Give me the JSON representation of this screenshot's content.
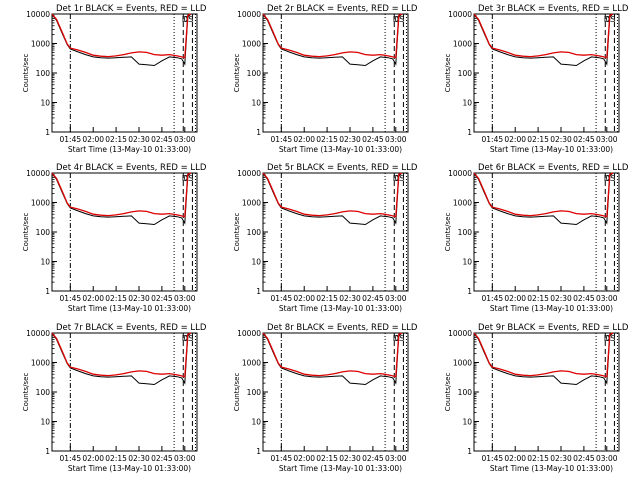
{
  "panel_common": {
    "xlabel": "Start Time (13-May-10 01:33:00)",
    "ylabel": "Counts/sec",
    "x_tick_labels": [
      "01:45",
      "02:00",
      "02:15",
      "02:30",
      "02:45",
      "03:00"
    ],
    "y_tick_labels": [
      "1",
      "10",
      "100",
      "1000",
      "10000"
    ],
    "legend_black": "BLACK = Events",
    "legend_red": "RED = LLD",
    "markers": [
      "D",
      "C",
      "S"
    ],
    "colors": {
      "events": "#000000",
      "lld": "#dd0000"
    }
  },
  "chart_data": [
    {
      "type": "line",
      "title": "Det 1r BLACK = Events, RED = LLD",
      "xlabel": "Start Time (13-May-10 01:33:00)",
      "ylabel": "Counts/sec",
      "yscale": "log",
      "ylim": [
        1,
        10000
      ],
      "xlim": [
        "01:33",
        "03:08"
      ],
      "x": [
        "01:33",
        "01:36",
        "01:40",
        "01:43",
        "01:45",
        "01:50",
        "01:55",
        "02:00",
        "02:05",
        "02:10",
        "02:15",
        "02:20",
        "02:25",
        "02:30",
        "02:35",
        "02:40",
        "02:45",
        "02:50",
        "02:55",
        "02:58",
        "03:00",
        "03:02",
        "03:04"
      ],
      "series": [
        {
          "name": "Events",
          "values": [
            10000,
            6000,
            2000,
            900,
            650,
            520,
            420,
            350,
            330,
            320,
            330,
            340,
            350,
            200,
            190,
            180,
            260,
            350,
            330,
            300,
            200,
            8000,
            10000
          ]
        },
        {
          "name": "LLD",
          "values": [
            10000,
            6500,
            2200,
            950,
            700,
            600,
            500,
            400,
            370,
            360,
            380,
            420,
            480,
            520,
            500,
            420,
            400,
            420,
            380,
            350,
            330,
            9000,
            10000
          ]
        }
      ]
    },
    {
      "type": "line",
      "title": "Det 2r BLACK = Events, RED = LLD",
      "xlabel": "Start Time (13-May-10 01:33:00)",
      "ylabel": "Counts/sec",
      "yscale": "log",
      "ylim": [
        1,
        10000
      ],
      "xlim": [
        "01:33",
        "03:08"
      ],
      "x": [
        "01:33",
        "01:36",
        "01:40",
        "01:43",
        "01:45",
        "01:50",
        "01:55",
        "02:00",
        "02:05",
        "02:10",
        "02:15",
        "02:20",
        "02:25",
        "02:30",
        "02:35",
        "02:40",
        "02:45",
        "02:50",
        "02:55",
        "02:58",
        "03:00",
        "03:02",
        "03:04"
      ],
      "series": [
        {
          "name": "Events",
          "values": [
            10000,
            6000,
            2000,
            900,
            650,
            520,
            420,
            350,
            330,
            320,
            330,
            340,
            350,
            200,
            190,
            180,
            260,
            350,
            330,
            300,
            200,
            8000,
            10000
          ]
        },
        {
          "name": "LLD",
          "values": [
            10000,
            6500,
            2200,
            950,
            700,
            600,
            500,
            400,
            370,
            360,
            380,
            420,
            480,
            520,
            500,
            420,
            400,
            420,
            380,
            350,
            330,
            9000,
            10000
          ]
        }
      ]
    },
    {
      "type": "line",
      "title": "Det 3r BLACK = Events, RED = LLD",
      "xlabel": "Start Time (13-May-10 01:33:00)",
      "ylabel": "Counts/sec",
      "yscale": "log",
      "ylim": [
        1,
        10000
      ],
      "xlim": [
        "01:33",
        "03:08"
      ],
      "x": [
        "01:33",
        "01:36",
        "01:40",
        "01:43",
        "01:45",
        "01:50",
        "01:55",
        "02:00",
        "02:05",
        "02:10",
        "02:15",
        "02:20",
        "02:25",
        "02:30",
        "02:35",
        "02:40",
        "02:45",
        "02:50",
        "02:55",
        "02:58",
        "03:00",
        "03:02",
        "03:04"
      ],
      "series": [
        {
          "name": "Events",
          "values": [
            10000,
            6000,
            2000,
            900,
            650,
            520,
            420,
            350,
            330,
            320,
            330,
            340,
            350,
            200,
            190,
            180,
            260,
            350,
            330,
            300,
            200,
            8000,
            10000
          ]
        },
        {
          "name": "LLD",
          "values": [
            10000,
            6500,
            2200,
            950,
            700,
            600,
            500,
            400,
            370,
            360,
            380,
            420,
            480,
            520,
            500,
            420,
            400,
            420,
            380,
            350,
            330,
            9000,
            10000
          ]
        }
      ]
    },
    {
      "type": "line",
      "title": "Det 4r BLACK = Events, RED = LLD",
      "xlabel": "Start Time (13-May-10 01:33:00)",
      "ylabel": "Counts/sec",
      "yscale": "log",
      "ylim": [
        1,
        10000
      ],
      "xlim": [
        "01:33",
        "03:08"
      ],
      "x": [
        "01:33",
        "01:36",
        "01:40",
        "01:43",
        "01:45",
        "01:50",
        "01:55",
        "02:00",
        "02:05",
        "02:10",
        "02:15",
        "02:20",
        "02:25",
        "02:30",
        "02:35",
        "02:40",
        "02:45",
        "02:50",
        "02:55",
        "02:58",
        "03:00",
        "03:02",
        "03:04"
      ],
      "series": [
        {
          "name": "Events",
          "values": [
            10000,
            6000,
            2000,
            900,
            650,
            520,
            420,
            350,
            330,
            320,
            330,
            340,
            350,
            200,
            190,
            180,
            260,
            350,
            330,
            300,
            200,
            8000,
            10000
          ]
        },
        {
          "name": "LLD",
          "values": [
            10000,
            6500,
            2200,
            950,
            700,
            600,
            500,
            400,
            370,
            360,
            380,
            420,
            480,
            520,
            500,
            420,
            400,
            420,
            380,
            350,
            330,
            9000,
            10000
          ]
        }
      ]
    },
    {
      "type": "line",
      "title": "Det 5r BLACK = Events, RED = LLD",
      "xlabel": "Start Time (13-May-10 01:33:00)",
      "ylabel": "Counts/sec",
      "yscale": "log",
      "ylim": [
        1,
        10000
      ],
      "xlim": [
        "01:33",
        "03:08"
      ],
      "x": [
        "01:33",
        "01:36",
        "01:40",
        "01:43",
        "01:45",
        "01:50",
        "01:55",
        "02:00",
        "02:05",
        "02:10",
        "02:15",
        "02:20",
        "02:25",
        "02:30",
        "02:35",
        "02:40",
        "02:45",
        "02:50",
        "02:55",
        "02:58",
        "03:00",
        "03:02",
        "03:04"
      ],
      "series": [
        {
          "name": "Events",
          "values": [
            10000,
            6000,
            2000,
            900,
            650,
            520,
            420,
            350,
            330,
            320,
            330,
            340,
            350,
            200,
            190,
            180,
            260,
            350,
            330,
            300,
            200,
            8000,
            10000
          ]
        },
        {
          "name": "LLD",
          "values": [
            10000,
            6500,
            2200,
            950,
            700,
            600,
            500,
            400,
            370,
            360,
            380,
            420,
            480,
            520,
            500,
            420,
            400,
            420,
            380,
            350,
            330,
            9000,
            10000
          ]
        }
      ]
    },
    {
      "type": "line",
      "title": "Det 6r BLACK = Events, RED = LLD",
      "xlabel": "Start Time (13-May-10 01:33:00)",
      "ylabel": "Counts/sec",
      "yscale": "log",
      "ylim": [
        1,
        10000
      ],
      "xlim": [
        "01:33",
        "03:08"
      ],
      "x": [
        "01:33",
        "01:36",
        "01:40",
        "01:43",
        "01:45",
        "01:50",
        "01:55",
        "02:00",
        "02:05",
        "02:10",
        "02:15",
        "02:20",
        "02:25",
        "02:30",
        "02:35",
        "02:40",
        "02:45",
        "02:50",
        "02:55",
        "02:58",
        "03:00",
        "03:02",
        "03:04"
      ],
      "series": [
        {
          "name": "Events",
          "values": [
            10000,
            6000,
            2000,
            900,
            650,
            520,
            420,
            350,
            330,
            320,
            330,
            340,
            350,
            200,
            190,
            180,
            260,
            350,
            330,
            300,
            200,
            8000,
            10000
          ]
        },
        {
          "name": "LLD",
          "values": [
            10000,
            6500,
            2200,
            950,
            700,
            600,
            500,
            400,
            370,
            360,
            380,
            420,
            480,
            520,
            500,
            420,
            400,
            420,
            380,
            350,
            330,
            9000,
            10000
          ]
        }
      ]
    },
    {
      "type": "line",
      "title": "Det 7r BLACK = Events, RED = LLD",
      "xlabel": "Start Time (13-May-10 01:33:00)",
      "ylabel": "Counts/sec",
      "yscale": "log",
      "ylim": [
        1,
        10000
      ],
      "xlim": [
        "01:33",
        "03:08"
      ],
      "x": [
        "01:33",
        "01:36",
        "01:40",
        "01:43",
        "01:45",
        "01:50",
        "01:55",
        "02:00",
        "02:05",
        "02:10",
        "02:15",
        "02:20",
        "02:25",
        "02:30",
        "02:35",
        "02:40",
        "02:45",
        "02:50",
        "02:55",
        "02:58",
        "03:00",
        "03:02",
        "03:04"
      ],
      "series": [
        {
          "name": "Events",
          "values": [
            10000,
            6000,
            2000,
            900,
            650,
            520,
            420,
            350,
            330,
            320,
            330,
            340,
            350,
            200,
            190,
            180,
            260,
            350,
            330,
            300,
            200,
            8000,
            10000
          ]
        },
        {
          "name": "LLD",
          "values": [
            10000,
            6500,
            2200,
            950,
            700,
            600,
            500,
            400,
            370,
            360,
            380,
            420,
            480,
            520,
            500,
            420,
            400,
            420,
            380,
            350,
            330,
            9000,
            10000
          ]
        }
      ]
    },
    {
      "type": "line",
      "title": "Det 8r BLACK = Events, RED = LLD",
      "xlabel": "Start Time (13-May-10 01:33:00)",
      "ylabel": "Counts/sec",
      "yscale": "log",
      "ylim": [
        1,
        10000
      ],
      "xlim": [
        "01:33",
        "03:08"
      ],
      "x": [
        "01:33",
        "01:36",
        "01:40",
        "01:43",
        "01:45",
        "01:50",
        "01:55",
        "02:00",
        "02:05",
        "02:10",
        "02:15",
        "02:20",
        "02:25",
        "02:30",
        "02:35",
        "02:40",
        "02:45",
        "02:50",
        "02:55",
        "02:58",
        "03:00",
        "03:02",
        "03:04"
      ],
      "series": [
        {
          "name": "Events",
          "values": [
            10000,
            6000,
            2000,
            900,
            650,
            520,
            420,
            350,
            330,
            320,
            330,
            340,
            350,
            200,
            190,
            180,
            260,
            350,
            330,
            300,
            200,
            8000,
            10000
          ]
        },
        {
          "name": "LLD",
          "values": [
            10000,
            6500,
            2200,
            950,
            700,
            600,
            500,
            400,
            370,
            360,
            380,
            420,
            480,
            520,
            500,
            420,
            400,
            420,
            380,
            350,
            330,
            9000,
            10000
          ]
        }
      ]
    },
    {
      "type": "line",
      "title": "Det 9r BLACK = Events, RED = LLD",
      "xlabel": "Start Time (13-May-10 01:33:00)",
      "ylabel": "Counts/sec",
      "yscale": "log",
      "ylim": [
        1,
        10000
      ],
      "xlim": [
        "01:33",
        "03:08"
      ],
      "x": [
        "01:33",
        "01:36",
        "01:40",
        "01:43",
        "01:45",
        "01:50",
        "01:55",
        "02:00",
        "02:05",
        "02:10",
        "02:15",
        "02:20",
        "02:25",
        "02:30",
        "02:35",
        "02:40",
        "02:45",
        "02:50",
        "02:55",
        "02:58",
        "03:00",
        "03:02",
        "03:04"
      ],
      "series": [
        {
          "name": "Events",
          "values": [
            10000,
            6000,
            2000,
            900,
            650,
            520,
            420,
            350,
            330,
            320,
            330,
            340,
            350,
            200,
            190,
            180,
            260,
            350,
            330,
            300,
            200,
            8000,
            10000
          ]
        },
        {
          "name": "LLD",
          "values": [
            10000,
            6500,
            2200,
            950,
            700,
            600,
            500,
            400,
            370,
            360,
            380,
            420,
            480,
            520,
            500,
            420,
            400,
            420,
            380,
            350,
            330,
            9000,
            10000
          ]
        }
      ]
    }
  ]
}
